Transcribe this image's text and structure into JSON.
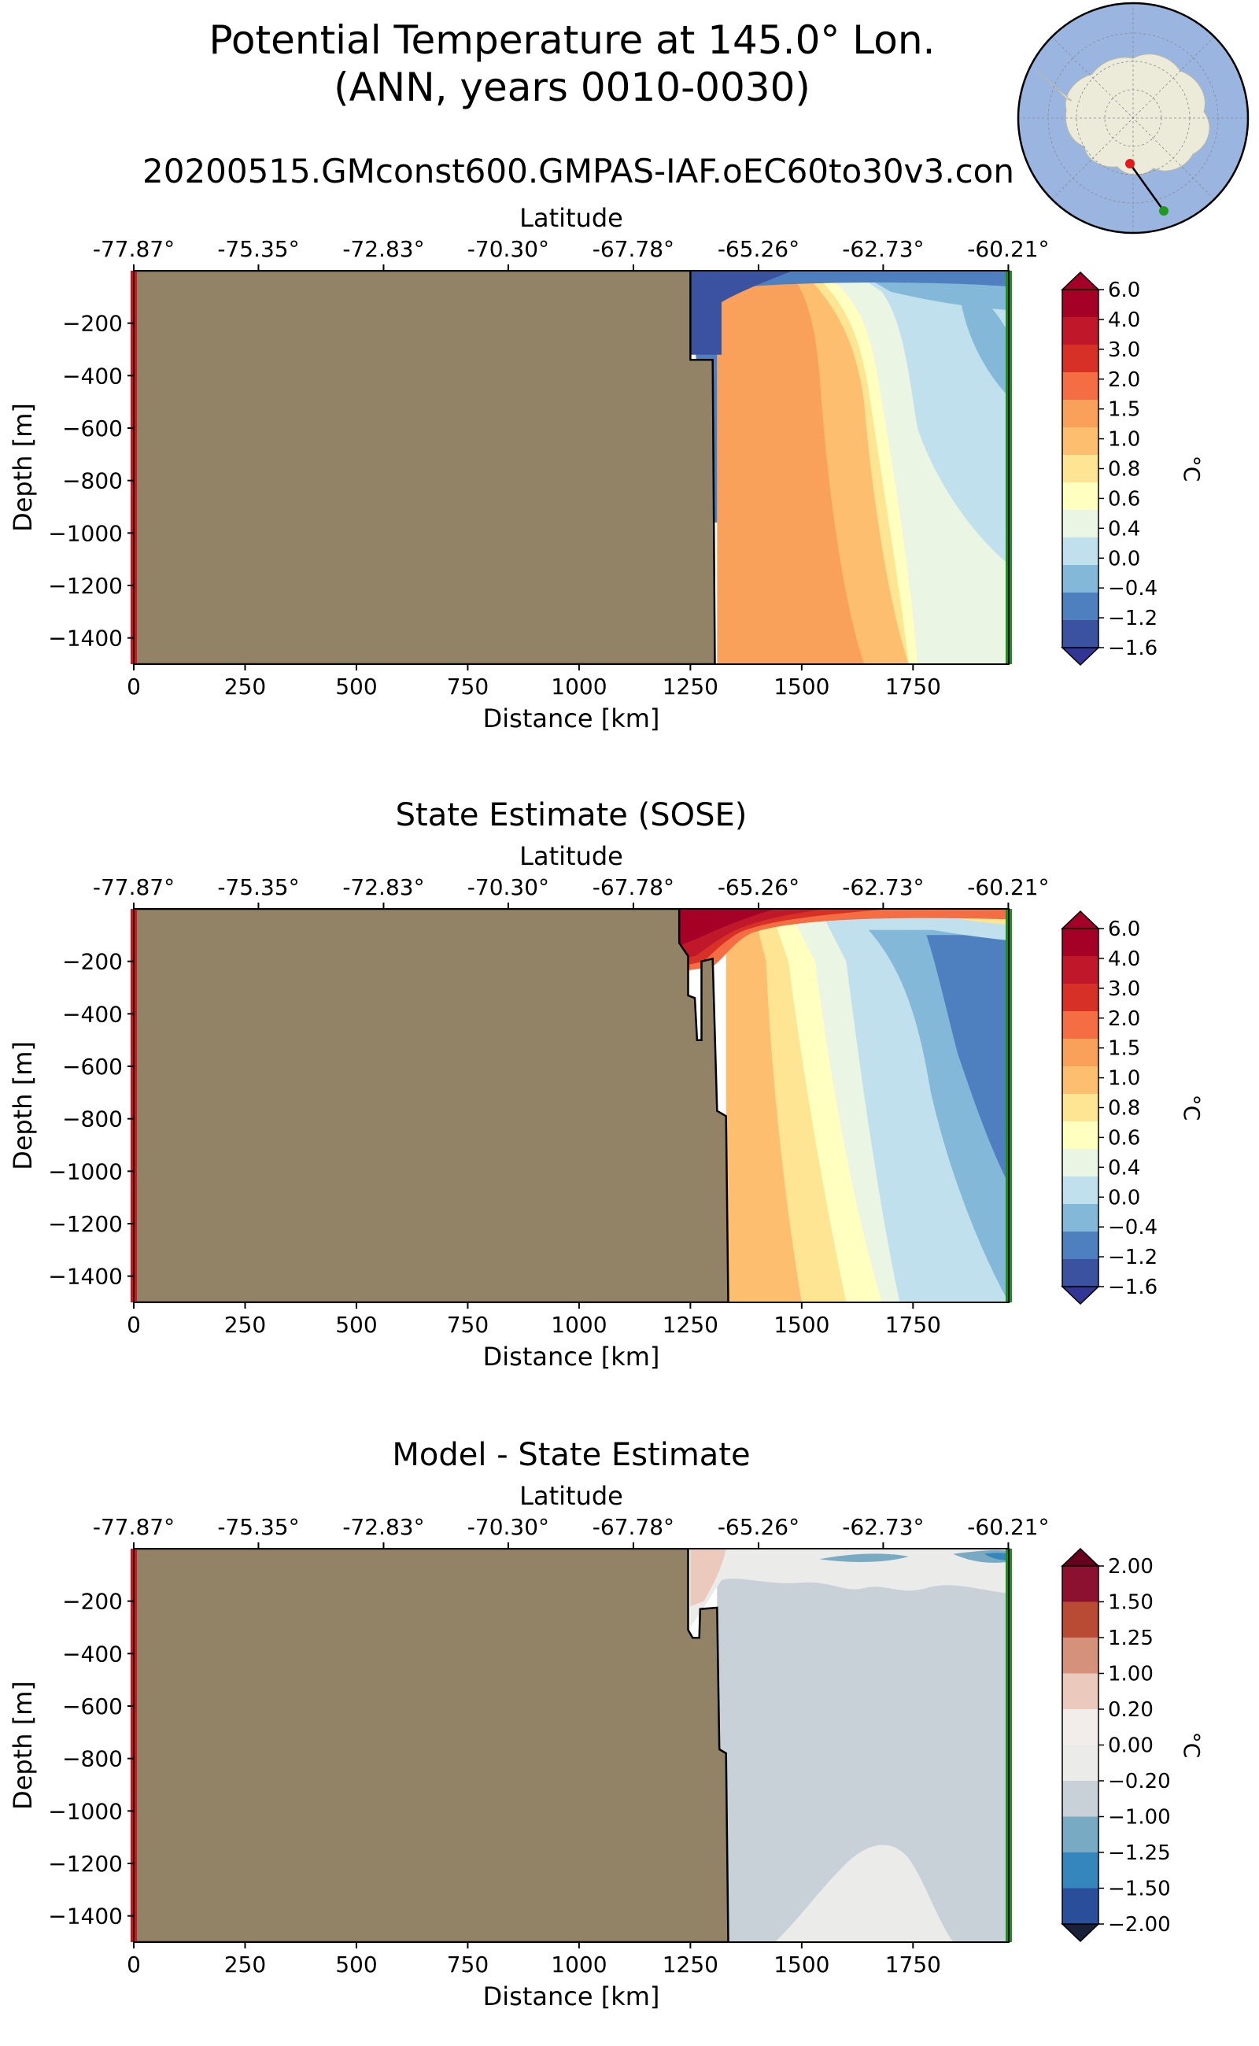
{
  "figure": {
    "title_line1": "Potential Temperature at 145.0° Lon.",
    "title_line2": "(ANN, years 0010-0030)",
    "subtitle": "20200515.GMconst600.GMPAS-IAF.oEC60to30v3.con"
  },
  "inset_map": {
    "projection": "south-polar-stereographic",
    "start_point_color": "#e31a1c",
    "end_point_color": "#1f9a1f"
  },
  "chart_data": [
    {
      "type": "heatmap",
      "title": "",
      "xlabel": "Distance [km]",
      "ylabel": "Depth [m]",
      "top_axis_label": "Latitude",
      "xlim": [
        0,
        1965
      ],
      "ylim": [
        -1500,
        0
      ],
      "x_ticks": [
        "0",
        "250",
        "500",
        "750",
        "1000",
        "1250",
        "1500",
        "1750"
      ],
      "x_tick_values": [
        0,
        250,
        500,
        750,
        1000,
        1250,
        1500,
        1750
      ],
      "y_ticks": [
        "−200",
        "−400",
        "−600",
        "−800",
        "−1000",
        "−1200",
        "−1400"
      ],
      "y_tick_values": [
        -200,
        -400,
        -600,
        -800,
        -1000,
        -1200,
        -1400
      ],
      "lat_ticks": [
        "-77.87°",
        "-75.35°",
        "-72.83°",
        "-70.30°",
        "-67.78°",
        "-65.26°",
        "-62.73°",
        "-60.21°"
      ],
      "lat_tick_positions_km": [
        0,
        280,
        561,
        841,
        1122,
        1403,
        1683,
        1964
      ],
      "colorbar": {
        "unit": "°C",
        "levels": [
          "6.0",
          "4.0",
          "3.0",
          "2.0",
          "1.5",
          "1.0",
          "0.8",
          "0.6",
          "0.4",
          "0.0",
          "−0.4",
          "−1.2",
          "−1.6"
        ],
        "colors": [
          "#a50026",
          "#c0182a",
          "#d73027",
          "#f46d43",
          "#f9a05a",
          "#fdbe70",
          "#fee593",
          "#ffffbf",
          "#eaf6e3",
          "#bfe0ec",
          "#84b8d9",
          "#4e7fbf",
          "#3b52a0"
        ],
        "over_color": "#a50026",
        "under_color": "#313695"
      },
      "bathymetry_km": [
        [
          0,
          0
        ],
        [
          1250,
          0
        ],
        [
          1250,
          -340
        ],
        [
          1300,
          -340
        ],
        [
          1305,
          -1500
        ],
        [
          0,
          -1500
        ]
      ]
    },
    {
      "type": "heatmap",
      "title": "State Estimate (SOSE)",
      "xlabel": "Distance [km]",
      "ylabel": "Depth [m]",
      "top_axis_label": "Latitude",
      "xlim": [
        0,
        1965
      ],
      "ylim": [
        -1500,
        0
      ],
      "x_ticks": [
        "0",
        "250",
        "500",
        "750",
        "1000",
        "1250",
        "1500",
        "1750"
      ],
      "x_tick_values": [
        0,
        250,
        500,
        750,
        1000,
        1250,
        1500,
        1750
      ],
      "y_ticks": [
        "−200",
        "−400",
        "−600",
        "−800",
        "−1000",
        "−1200",
        "−1400"
      ],
      "y_tick_values": [
        -200,
        -400,
        -600,
        -800,
        -1000,
        -1200,
        -1400
      ],
      "lat_ticks": [
        "-77.87°",
        "-75.35°",
        "-72.83°",
        "-70.30°",
        "-67.78°",
        "-65.26°",
        "-62.73°",
        "-60.21°"
      ],
      "lat_tick_positions_km": [
        0,
        280,
        561,
        841,
        1122,
        1403,
        1683,
        1964
      ],
      "colorbar": {
        "unit": "°C",
        "levels": [
          "6.0",
          "4.0",
          "3.0",
          "2.0",
          "1.5",
          "1.0",
          "0.8",
          "0.6",
          "0.4",
          "0.0",
          "−0.4",
          "−1.2",
          "−1.6"
        ],
        "colors": [
          "#a50026",
          "#c0182a",
          "#d73027",
          "#f46d43",
          "#f9a05a",
          "#fdbe70",
          "#fee593",
          "#ffffbf",
          "#eaf6e3",
          "#bfe0ec",
          "#84b8d9",
          "#4e7fbf",
          "#3b52a0"
        ],
        "over_color": "#a50026",
        "under_color": "#313695"
      },
      "bathymetry_km": [
        [
          0,
          0
        ],
        [
          1225,
          0
        ],
        [
          1225,
          -130
        ],
        [
          1245,
          -180
        ],
        [
          1245,
          -330
        ],
        [
          1260,
          -340
        ],
        [
          1265,
          -500
        ],
        [
          1275,
          -500
        ],
        [
          1275,
          -200
        ],
        [
          1300,
          -190
        ],
        [
          1310,
          -770
        ],
        [
          1330,
          -790
        ],
        [
          1335,
          -1500
        ],
        [
          0,
          -1500
        ]
      ]
    },
    {
      "type": "heatmap",
      "title": "Model - State Estimate",
      "xlabel": "Distance [km]",
      "ylabel": "Depth [m]",
      "top_axis_label": "Latitude",
      "xlim": [
        0,
        1965
      ],
      "ylim": [
        -1500,
        0
      ],
      "x_ticks": [
        "0",
        "250",
        "500",
        "750",
        "1000",
        "1250",
        "1500",
        "1750"
      ],
      "x_tick_values": [
        0,
        250,
        500,
        750,
        1000,
        1250,
        1500,
        1750
      ],
      "y_ticks": [
        "−200",
        "−400",
        "−600",
        "−800",
        "−1000",
        "−1200",
        "−1400"
      ],
      "y_tick_values": [
        -200,
        -400,
        -600,
        -800,
        -1000,
        -1200,
        -1400
      ],
      "lat_ticks": [
        "-77.87°",
        "-75.35°",
        "-72.83°",
        "-70.30°",
        "-67.78°",
        "-65.26°",
        "-62.73°",
        "-60.21°"
      ],
      "lat_tick_positions_km": [
        0,
        280,
        561,
        841,
        1122,
        1403,
        1683,
        1964
      ],
      "colorbar": {
        "unit": "°C",
        "levels": [
          "2.00",
          "1.50",
          "1.25",
          "1.00",
          "0.20",
          "0.00",
          "−0.20",
          "−1.00",
          "−1.25",
          "−1.50",
          "−2.00"
        ],
        "colors": [
          "#8c1130",
          "#b94a34",
          "#d6917a",
          "#ecc9bd",
          "#f2ecea",
          "#ebebea",
          "#c8d1d8",
          "#79aac4",
          "#3486bd",
          "#2a4e9a"
        ],
        "over_color": "#67001f",
        "under_color": "#1a1f3a"
      },
      "bathymetry_km": [
        [
          0,
          0
        ],
        [
          1245,
          0
        ],
        [
          1245,
          -310
        ],
        [
          1255,
          -340
        ],
        [
          1270,
          -340
        ],
        [
          1272,
          -230
        ],
        [
          1310,
          -225
        ],
        [
          1315,
          -765
        ],
        [
          1330,
          -780
        ],
        [
          1335,
          -1500
        ],
        [
          0,
          -1500
        ]
      ]
    }
  ]
}
